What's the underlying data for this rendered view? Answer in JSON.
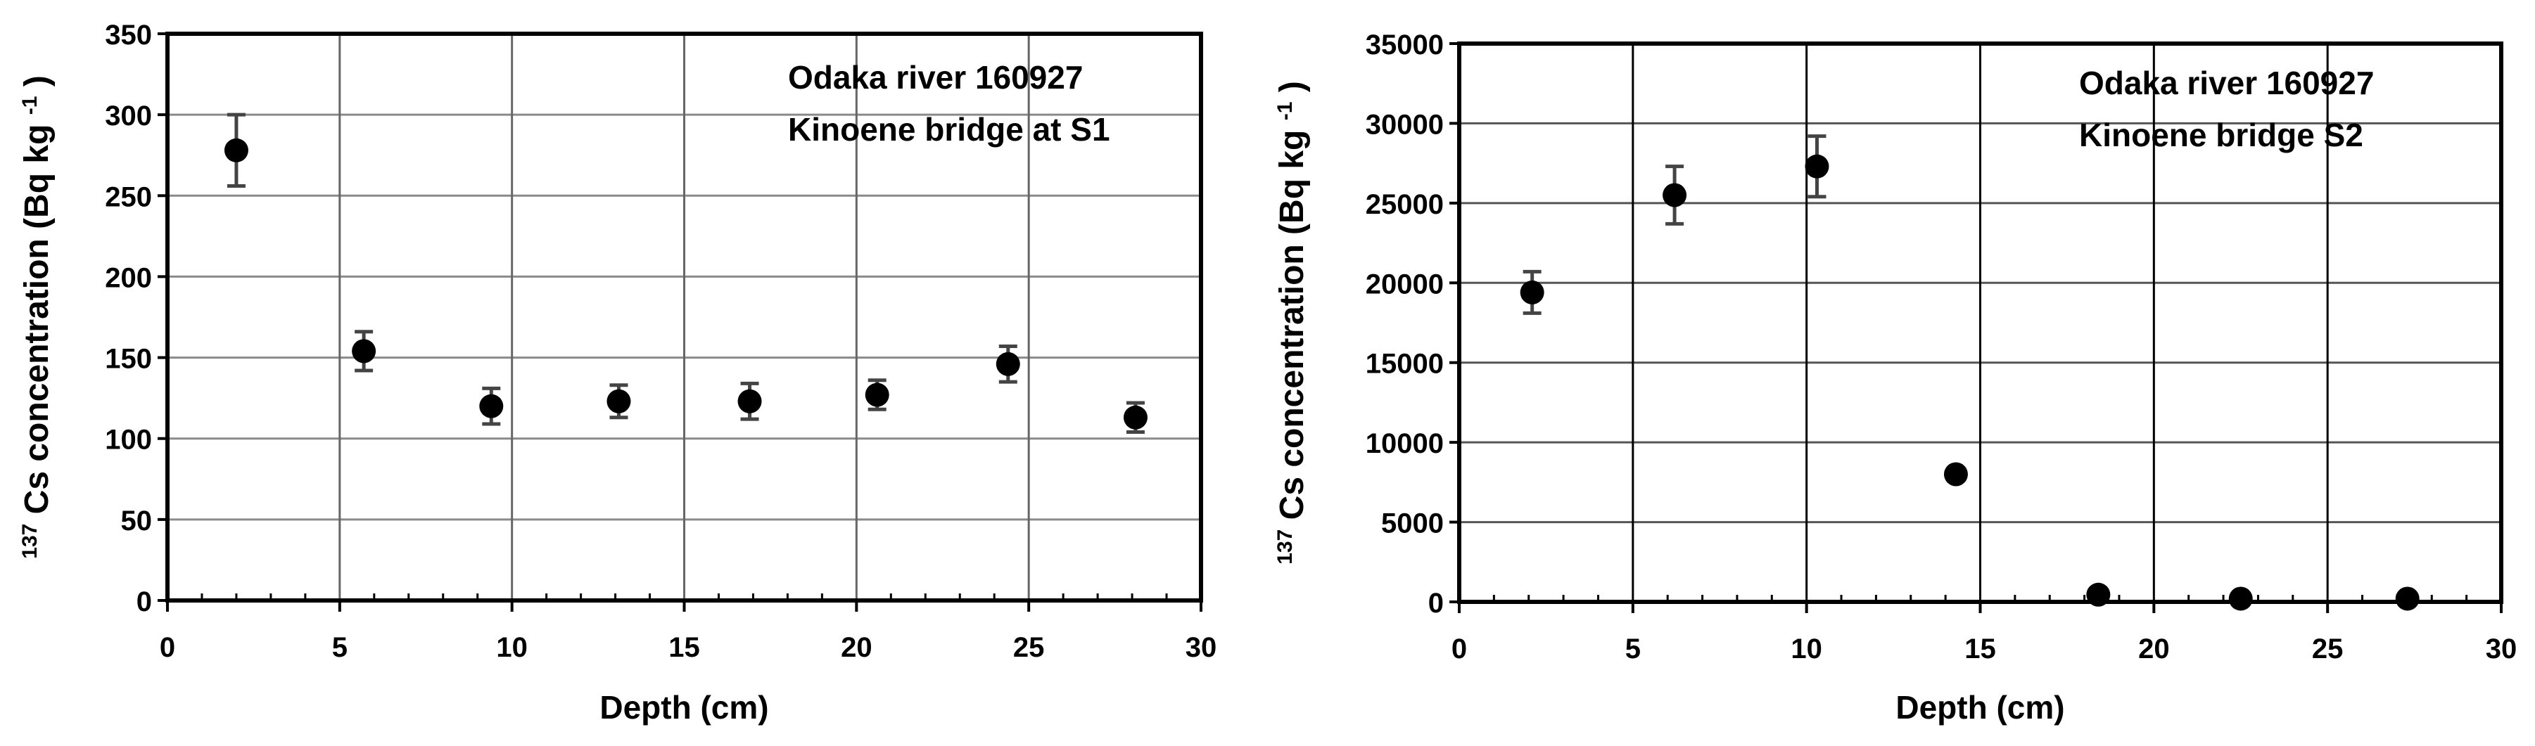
{
  "figure": {
    "panels": [
      "left",
      "right"
    ]
  },
  "chart_data": [
    {
      "type": "scatter",
      "title": "",
      "annotation": [
        "Odaka river 160927",
        "Kinoene bridge at S1"
      ],
      "xlabel": "Depth (cm)",
      "ylabel": {
        "superscript": "137",
        "main": "Cs concentration  (Bq kg",
        "unit_superscript": "-1",
        "close": ")"
      },
      "xlim": [
        0,
        30
      ],
      "ylim": [
        0,
        350
      ],
      "x_ticks": [
        0,
        5,
        10,
        15,
        20,
        25,
        30
      ],
      "y_ticks": [
        0,
        50,
        100,
        150,
        200,
        250,
        300,
        350
      ],
      "x_minor_step": 1,
      "grid": true,
      "series": [
        {
          "x": [
            2.0,
            5.7,
            9.4,
            13.1,
            16.9,
            20.6,
            24.4,
            28.1
          ],
          "y": [
            278,
            154,
            120,
            123,
            123,
            127,
            146,
            113
          ],
          "error": [
            22,
            12,
            11,
            10,
            11,
            9,
            11,
            9
          ]
        }
      ]
    },
    {
      "type": "scatter",
      "title": "",
      "annotation": [
        "Odaka river 160927",
        "Kinoene bridge S2"
      ],
      "xlabel": "Depth (cm)",
      "ylabel": {
        "superscript": "137",
        "main": "Cs concentration  (Bq kg",
        "unit_superscript": "-1",
        "close": ")"
      },
      "xlim": [
        0,
        30
      ],
      "ylim": [
        0,
        35000
      ],
      "x_ticks": [
        0,
        5,
        10,
        15,
        20,
        25,
        30
      ],
      "y_ticks": [
        0,
        5000,
        10000,
        15000,
        20000,
        25000,
        30000,
        35000
      ],
      "x_minor_step": 1,
      "grid": true,
      "series": [
        {
          "x": [
            2.1,
            6.2,
            10.3,
            14.3,
            18.4,
            22.5,
            27.3
          ],
          "y": [
            19400,
            25500,
            27300,
            8000,
            450,
            200,
            200
          ],
          "error": [
            1300,
            1800,
            1900,
            300,
            150,
            100,
            100
          ]
        }
      ]
    }
  ]
}
